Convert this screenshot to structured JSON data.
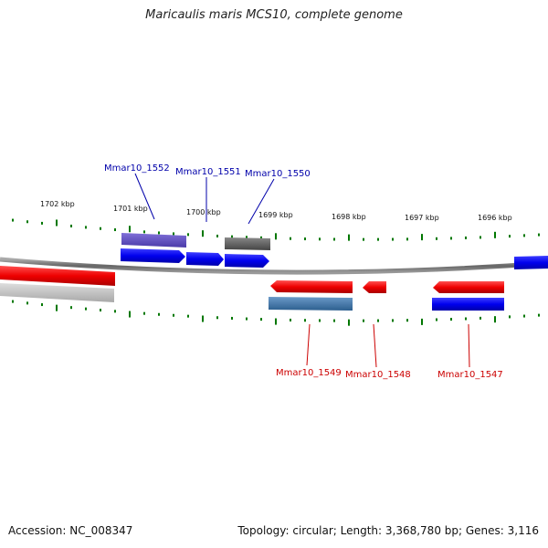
{
  "title": "Maricaulis maris MCS10, complete genome",
  "footer": {
    "accession": "Accession: NC_008347",
    "summary": "Topology: circular; Length: 3,368,780 bp; Genes: 3,116"
  },
  "axis_ticks": [
    "1702 kbp",
    "1701 kbp",
    "1700 kbp",
    "1699 kbp",
    "1698 kbp",
    "1697 kbp",
    "1696 kbp"
  ],
  "gene_labels": [
    {
      "name": "Mmar10_1552",
      "strand": "forward"
    },
    {
      "name": "Mmar10_1551",
      "strand": "forward"
    },
    {
      "name": "Mmar10_1550",
      "strand": "forward"
    },
    {
      "name": "Mmar10_1549",
      "strand": "reverse"
    },
    {
      "name": "Mmar10_1548",
      "strand": "reverse"
    },
    {
      "name": "Mmar10_1547",
      "strand": "reverse"
    }
  ],
  "colors": {
    "forward_label": "#0000aa",
    "reverse_label": "#cc0000",
    "forward_gene": "#0000ee",
    "reverse_gene": "#ee0000",
    "tick": "#007700",
    "backbone": "#777777"
  }
}
